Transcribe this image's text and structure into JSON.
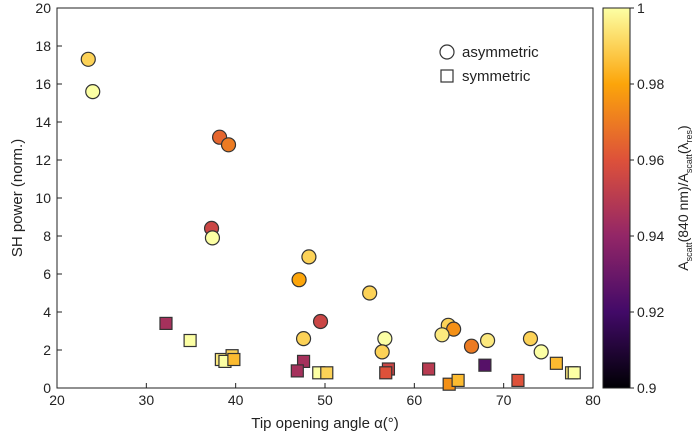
{
  "chart_data": {
    "type": "scatter",
    "xlabel": "Tip opening angle α(°)",
    "ylabel": "SH power (norm.)",
    "xlim": [
      20,
      80
    ],
    "ylim": [
      0,
      20
    ],
    "xticks": [
      20,
      30,
      40,
      50,
      60,
      70,
      80
    ],
    "yticks": [
      0,
      2,
      4,
      6,
      8,
      10,
      12,
      14,
      16,
      18,
      20
    ],
    "grid": false,
    "legend_position": "top-right",
    "series": [
      {
        "name": "asymmetric",
        "marker": "circle",
        "points": [
          {
            "x": 23.5,
            "y": 17.3,
            "c": 0.99
          },
          {
            "x": 24.0,
            "y": 15.6,
            "c": 1.0
          },
          {
            "x": 38.2,
            "y": 13.2,
            "c": 0.965
          },
          {
            "x": 39.2,
            "y": 12.8,
            "c": 0.97
          },
          {
            "x": 37.3,
            "y": 8.4,
            "c": 0.955
          },
          {
            "x": 37.4,
            "y": 7.9,
            "c": 1.0
          },
          {
            "x": 48.2,
            "y": 6.9,
            "c": 0.99
          },
          {
            "x": 47.1,
            "y": 5.7,
            "c": 0.98
          },
          {
            "x": 55.0,
            "y": 5.0,
            "c": 0.99
          },
          {
            "x": 49.5,
            "y": 3.5,
            "c": 0.955
          },
          {
            "x": 47.6,
            "y": 2.6,
            "c": 0.99
          },
          {
            "x": 63.8,
            "y": 3.3,
            "c": 0.99
          },
          {
            "x": 64.4,
            "y": 3.1,
            "c": 0.975
          },
          {
            "x": 56.7,
            "y": 2.6,
            "c": 1.0
          },
          {
            "x": 56.4,
            "y": 1.9,
            "c": 0.99
          },
          {
            "x": 63.1,
            "y": 2.8,
            "c": 0.995
          },
          {
            "x": 66.4,
            "y": 2.2,
            "c": 0.97
          },
          {
            "x": 68.2,
            "y": 2.5,
            "c": 0.995
          },
          {
            "x": 73.0,
            "y": 2.6,
            "c": 0.99
          },
          {
            "x": 74.2,
            "y": 1.9,
            "c": 1.0
          }
        ]
      },
      {
        "name": "symmetric",
        "marker": "square",
        "points": [
          {
            "x": 32.2,
            "y": 3.4,
            "c": 0.945
          },
          {
            "x": 34.9,
            "y": 2.5,
            "c": 1.0
          },
          {
            "x": 38.4,
            "y": 1.5,
            "c": 0.995
          },
          {
            "x": 39.6,
            "y": 1.7,
            "c": 0.99
          },
          {
            "x": 38.8,
            "y": 1.4,
            "c": 1.0
          },
          {
            "x": 39.8,
            "y": 1.5,
            "c": 0.985
          },
          {
            "x": 47.6,
            "y": 1.4,
            "c": 0.945
          },
          {
            "x": 46.9,
            "y": 0.9,
            "c": 0.945
          },
          {
            "x": 49.3,
            "y": 0.8,
            "c": 1.0
          },
          {
            "x": 50.2,
            "y": 0.8,
            "c": 0.99
          },
          {
            "x": 57.1,
            "y": 1.0,
            "c": 0.955
          },
          {
            "x": 56.8,
            "y": 0.8,
            "c": 0.96
          },
          {
            "x": 61.6,
            "y": 1.0,
            "c": 0.95
          },
          {
            "x": 63.9,
            "y": 0.2,
            "c": 0.975
          },
          {
            "x": 64.9,
            "y": 0.4,
            "c": 0.985
          },
          {
            "x": 67.9,
            "y": 1.2,
            "c": 0.925
          },
          {
            "x": 71.6,
            "y": 0.4,
            "c": 0.96
          },
          {
            "x": 75.9,
            "y": 1.3,
            "c": 0.985
          },
          {
            "x": 77.6,
            "y": 0.8,
            "c": 0.995
          },
          {
            "x": 77.9,
            "y": 0.8,
            "c": 1.0
          }
        ]
      }
    ],
    "colorbar": {
      "label": "A_scatt(840 nm)/A_scatt(λ_res)",
      "range": [
        0.9,
        1.0
      ],
      "ticks": [
        0.9,
        0.92,
        0.94,
        0.96,
        0.98,
        1
      ],
      "tick_labels": [
        "0.9",
        "0.92",
        "0.94",
        "0.96",
        "0.98",
        "1"
      ],
      "colormap": "inferno",
      "colormap_stops": [
        "#000004",
        "#420a68",
        "#932667",
        "#dd513a",
        "#fca50a",
        "#fcffa4"
      ]
    }
  }
}
